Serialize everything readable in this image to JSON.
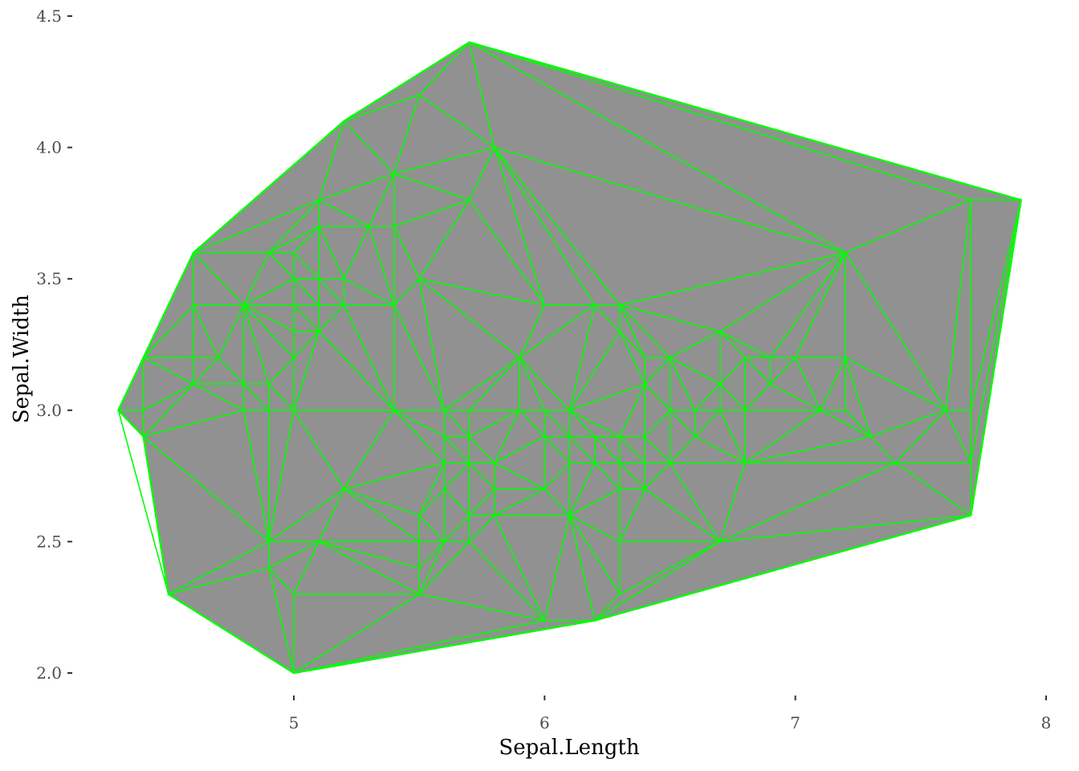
{
  "chart_data": {
    "type": "scatter",
    "subtype": "delaunay-triangulation",
    "title": "",
    "xlabel": "Sepal.Length",
    "ylabel": "Sepal.Width",
    "xlim": [
      4.3,
      7.9
    ],
    "ylim": [
      2.0,
      4.4
    ],
    "xticks": [
      5,
      6,
      7,
      8
    ],
    "xtick_labels": [
      "5",
      "6",
      "7",
      "8"
    ],
    "yticks": [
      2.0,
      2.5,
      3.0,
      3.5,
      4.0,
      4.5
    ],
    "ytick_labels": [
      "2.0",
      "2.5",
      "3.0",
      "3.5",
      "4.0",
      "4.5"
    ],
    "grid": false,
    "legend": "none",
    "hull": [
      [
        4.3,
        3.0
      ],
      [
        4.4,
        3.2
      ],
      [
        4.6,
        3.6
      ],
      [
        5.2,
        4.1
      ],
      [
        5.7,
        4.4
      ],
      [
        7.9,
        3.8
      ],
      [
        7.7,
        2.6
      ],
      [
        6.2,
        2.2
      ],
      [
        5.0,
        2.0
      ],
      [
        4.5,
        2.3
      ],
      [
        4.4,
        2.9
      ]
    ],
    "points": [
      [
        4.3,
        3.0
      ],
      [
        4.4,
        2.9
      ],
      [
        4.4,
        3.0
      ],
      [
        4.4,
        3.2
      ],
      [
        4.5,
        2.3
      ],
      [
        4.6,
        3.1
      ],
      [
        4.6,
        3.2
      ],
      [
        4.6,
        3.4
      ],
      [
        4.6,
        3.6
      ],
      [
        4.7,
        3.2
      ],
      [
        4.8,
        3.0
      ],
      [
        4.8,
        3.1
      ],
      [
        4.8,
        3.4
      ],
      [
        4.9,
        2.4
      ],
      [
        4.9,
        2.5
      ],
      [
        4.9,
        3.0
      ],
      [
        4.9,
        3.1
      ],
      [
        4.9,
        3.6
      ],
      [
        5.0,
        2.0
      ],
      [
        5.0,
        2.3
      ],
      [
        5.0,
        3.0
      ],
      [
        5.0,
        3.2
      ],
      [
        5.0,
        3.3
      ],
      [
        5.0,
        3.4
      ],
      [
        5.0,
        3.5
      ],
      [
        5.0,
        3.6
      ],
      [
        5.1,
        2.5
      ],
      [
        5.1,
        3.3
      ],
      [
        5.1,
        3.4
      ],
      [
        5.1,
        3.5
      ],
      [
        5.1,
        3.7
      ],
      [
        5.1,
        3.8
      ],
      [
        5.2,
        2.7
      ],
      [
        5.2,
        3.4
      ],
      [
        5.2,
        3.5
      ],
      [
        5.2,
        4.1
      ],
      [
        5.3,
        3.7
      ],
      [
        5.4,
        3.0
      ],
      [
        5.4,
        3.4
      ],
      [
        5.4,
        3.7
      ],
      [
        5.4,
        3.9
      ],
      [
        5.5,
        2.3
      ],
      [
        5.5,
        2.4
      ],
      [
        5.5,
        2.5
      ],
      [
        5.5,
        2.6
      ],
      [
        5.5,
        3.5
      ],
      [
        5.5,
        4.2
      ],
      [
        5.6,
        2.5
      ],
      [
        5.6,
        2.7
      ],
      [
        5.6,
        2.8
      ],
      [
        5.6,
        2.9
      ],
      [
        5.6,
        3.0
      ],
      [
        5.7,
        2.5
      ],
      [
        5.7,
        2.6
      ],
      [
        5.7,
        2.8
      ],
      [
        5.7,
        2.9
      ],
      [
        5.7,
        3.0
      ],
      [
        5.7,
        3.8
      ],
      [
        5.7,
        4.4
      ],
      [
        5.8,
        2.6
      ],
      [
        5.8,
        2.7
      ],
      [
        5.8,
        2.8
      ],
      [
        5.8,
        4.0
      ],
      [
        5.9,
        3.0
      ],
      [
        5.9,
        3.2
      ],
      [
        6.0,
        2.2
      ],
      [
        6.0,
        2.7
      ],
      [
        6.0,
        2.9
      ],
      [
        6.0,
        3.0
      ],
      [
        6.0,
        3.4
      ],
      [
        6.1,
        2.6
      ],
      [
        6.1,
        2.8
      ],
      [
        6.1,
        2.9
      ],
      [
        6.1,
        3.0
      ],
      [
        6.2,
        2.2
      ],
      [
        6.2,
        2.8
      ],
      [
        6.2,
        2.9
      ],
      [
        6.2,
        3.4
      ],
      [
        6.3,
        2.3
      ],
      [
        6.3,
        2.5
      ],
      [
        6.3,
        2.7
      ],
      [
        6.3,
        2.8
      ],
      [
        6.3,
        2.9
      ],
      [
        6.3,
        3.3
      ],
      [
        6.3,
        3.4
      ],
      [
        6.4,
        2.7
      ],
      [
        6.4,
        2.8
      ],
      [
        6.4,
        2.9
      ],
      [
        6.4,
        3.1
      ],
      [
        6.4,
        3.2
      ],
      [
        6.5,
        2.8
      ],
      [
        6.5,
        3.0
      ],
      [
        6.5,
        3.2
      ],
      [
        6.6,
        2.9
      ],
      [
        6.6,
        3.0
      ],
      [
        6.7,
        2.5
      ],
      [
        6.7,
        3.0
      ],
      [
        6.7,
        3.1
      ],
      [
        6.7,
        3.3
      ],
      [
        6.8,
        2.8
      ],
      [
        6.8,
        3.0
      ],
      [
        6.8,
        3.2
      ],
      [
        6.9,
        3.1
      ],
      [
        6.9,
        3.2
      ],
      [
        7.0,
        3.2
      ],
      [
        7.1,
        3.0
      ],
      [
        7.2,
        3.0
      ],
      [
        7.2,
        3.2
      ],
      [
        7.2,
        3.6
      ],
      [
        7.3,
        2.9
      ],
      [
        7.4,
        2.8
      ],
      [
        7.6,
        3.0
      ],
      [
        7.7,
        2.6
      ],
      [
        7.7,
        2.8
      ],
      [
        7.7,
        3.0
      ],
      [
        7.7,
        3.8
      ],
      [
        7.9,
        3.8
      ]
    ],
    "fill_color": "#919191",
    "edge_color": "#00ff00",
    "background": "#ffffff"
  }
}
